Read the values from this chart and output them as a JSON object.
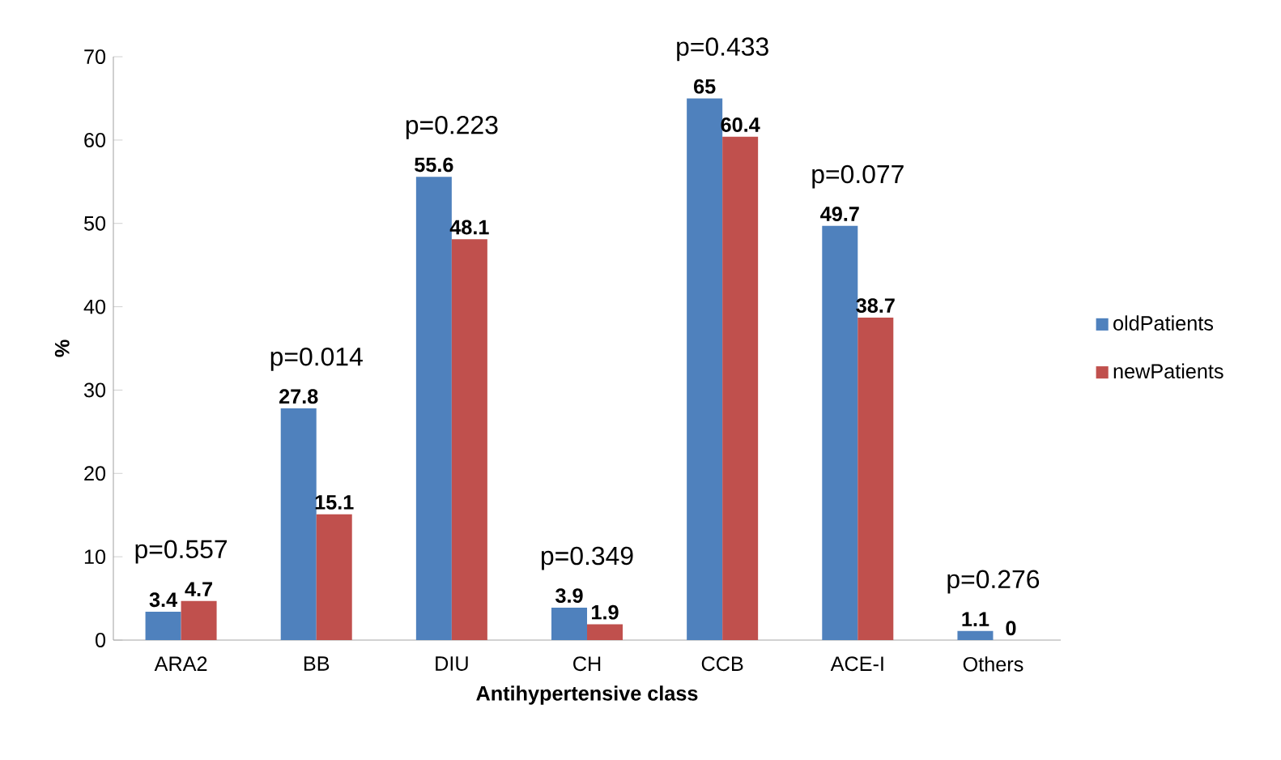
{
  "chart_data": {
    "type": "bar",
    "xlabel": "Antihypertensive class",
    "ylabel": "%",
    "categories": [
      "ARA2",
      "BB",
      "DIU",
      "CH",
      "CCB",
      "ACE-I",
      "Others"
    ],
    "series": [
      {
        "name": "oldPatients",
        "color": "#4f81bd",
        "values": [
          3.4,
          27.8,
          55.6,
          3.9,
          65,
          49.7,
          1.1
        ]
      },
      {
        "name": "newPatients",
        "color": "#c0504d",
        "values": [
          4.7,
          15.1,
          48.1,
          1.9,
          60.4,
          38.7,
          0
        ]
      }
    ],
    "ylim": [
      0,
      70
    ],
    "yticks": [
      0,
      10,
      20,
      30,
      40,
      50,
      60,
      70
    ],
    "grid": false,
    "legend": "right",
    "data_labels": true,
    "annotations": [
      "p=0.557",
      "p=0.014",
      "p=0.223",
      "p=0.349",
      "p=0.433",
      "p=0.077",
      "p=0.276"
    ]
  }
}
